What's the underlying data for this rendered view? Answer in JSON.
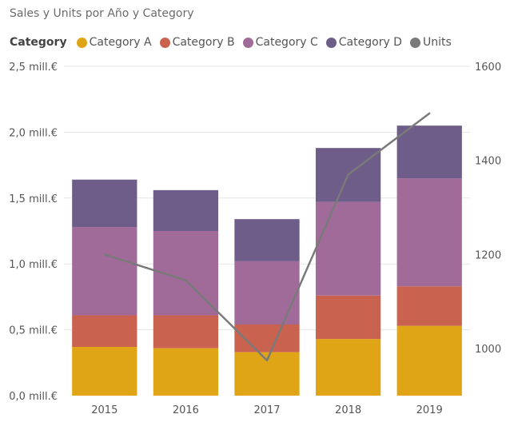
{
  "chart_data": {
    "type": "bar",
    "title": "Sales y Units por Año y Category",
    "legend_title": "Category",
    "categories": [
      "2015",
      "2016",
      "2017",
      "2018",
      "2019"
    ],
    "series": [
      {
        "name": "Category A",
        "values": [
          0.37,
          0.36,
          0.33,
          0.43,
          0.53
        ],
        "color": "#E0A516"
      },
      {
        "name": "Category B",
        "values": [
          0.24,
          0.25,
          0.21,
          0.33,
          0.3
        ],
        "color": "#C9624F"
      },
      {
        "name": "Category C",
        "values": [
          0.67,
          0.64,
          0.48,
          0.71,
          0.82
        ],
        "color": "#A06B99"
      },
      {
        "name": "Category D",
        "values": [
          0.36,
          0.31,
          0.32,
          0.41,
          0.4
        ],
        "color": "#6E5C89"
      }
    ],
    "line": {
      "name": "Units",
      "values": [
        1200,
        1145,
        975,
        1370,
        1500
      ],
      "color": "#7A7A7A"
    },
    "ylim": [
      0,
      2.5
    ],
    "y_ticks": [
      "0,0 mill.€",
      "0,5 mill.€",
      "1,0 mill.€",
      "1,5 mill.€",
      "2,0 mill.€",
      "2,5 mill.€"
    ],
    "y2lim": [
      900,
      1600
    ],
    "y2_ticks": [
      "1000",
      "1200",
      "1400",
      "1600"
    ],
    "gridlines": true,
    "legend_position": "top-left"
  }
}
